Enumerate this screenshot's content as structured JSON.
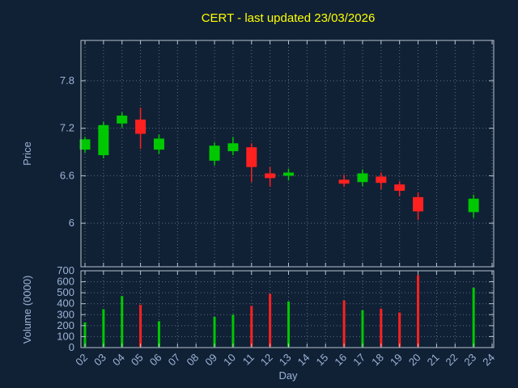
{
  "title": "CERT - last updated 23/03/2026",
  "chart_data": {
    "type": "candlestick",
    "title": "CERT - last updated 23/03/2026",
    "xlabel": "Day",
    "price_axis_label": "Price",
    "volume_axis_label": "Volume (0000)",
    "x_ticks": [
      "02",
      "03",
      "04",
      "05",
      "06",
      "07",
      "08",
      "09",
      "10",
      "11",
      "12",
      "13",
      "14",
      "15",
      "16",
      "17",
      "18",
      "19",
      "20",
      "21",
      "22",
      "23",
      "24"
    ],
    "price_ticks": [
      6,
      6.6,
      7.2,
      7.8
    ],
    "price_range": [
      5.45,
      8.31
    ],
    "volume_ticks": [
      0,
      100,
      200,
      300,
      400,
      500,
      600,
      700
    ],
    "volume_range": [
      0,
      700
    ],
    "grid": "dotted",
    "legend": "none",
    "series": [
      {
        "day": "02",
        "open": 6.93,
        "high": 7.09,
        "low": 6.89,
        "close": 7.06,
        "volume": 230
      },
      {
        "day": "03",
        "open": 6.86,
        "high": 7.28,
        "low": 6.82,
        "close": 7.24,
        "volume": 350
      },
      {
        "day": "04",
        "open": 7.26,
        "high": 7.4,
        "low": 7.21,
        "close": 7.36,
        "volume": 470
      },
      {
        "day": "05",
        "open": 7.31,
        "high": 7.46,
        "low": 6.94,
        "close": 7.13,
        "volume": 390
      },
      {
        "day": "06",
        "open": 6.93,
        "high": 7.12,
        "low": 6.88,
        "close": 7.07,
        "volume": 240
      },
      {
        "day": "09",
        "open": 6.79,
        "high": 7.02,
        "low": 6.73,
        "close": 6.98,
        "volume": 280
      },
      {
        "day": "10",
        "open": 6.91,
        "high": 7.09,
        "low": 6.86,
        "close": 7.01,
        "volume": 300
      },
      {
        "day": "11",
        "open": 6.96,
        "high": 7.01,
        "low": 6.52,
        "close": 6.71,
        "volume": 380
      },
      {
        "day": "12",
        "open": 6.63,
        "high": 6.71,
        "low": 6.46,
        "close": 6.57,
        "volume": 490
      },
      {
        "day": "13",
        "open": 6.6,
        "high": 6.69,
        "low": 6.54,
        "close": 6.64,
        "volume": 420
      },
      {
        "day": "16",
        "open": 6.55,
        "high": 6.61,
        "low": 6.46,
        "close": 6.5,
        "volume": 430
      },
      {
        "day": "17",
        "open": 6.52,
        "high": 6.68,
        "low": 6.47,
        "close": 6.63,
        "volume": 340
      },
      {
        "day": "18",
        "open": 6.59,
        "high": 6.64,
        "low": 6.43,
        "close": 6.51,
        "volume": 355
      },
      {
        "day": "19",
        "open": 6.49,
        "high": 6.53,
        "low": 6.34,
        "close": 6.41,
        "volume": 320
      },
      {
        "day": "20",
        "open": 6.33,
        "high": 6.39,
        "low": 6.04,
        "close": 6.15,
        "volume": 660
      },
      {
        "day": "23",
        "open": 6.14,
        "high": 6.36,
        "low": 6.07,
        "close": 6.31,
        "volume": 545
      }
    ],
    "colors": {
      "up": "#00c800",
      "down": "#ff2020",
      "title": "#ffff00",
      "text": "#9db3d6",
      "grid": "#5c6e85",
      "border": "#b7c2cf",
      "background": "#102135"
    }
  }
}
